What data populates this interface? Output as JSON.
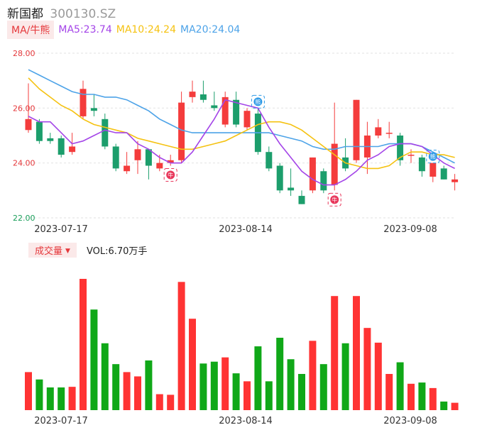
{
  "header": {
    "name": "新国都",
    "code": "300130.SZ"
  },
  "ma_legend": {
    "toggle_label": "MA/牛熊",
    "ma5": "MA5:23.74",
    "ma10": "MA10:24.24",
    "ma20": "MA20:24.04"
  },
  "volume_legend": {
    "toggle_label": "成交量",
    "value_label": "VOL:6.70万手"
  },
  "colors": {
    "up": "#f43c3c",
    "down": "#1c9e6c",
    "vol_up": "#ff3333",
    "vol_down": "#10a818",
    "ma5": "#a445e8",
    "ma10": "#f5c211",
    "ma20": "#4da3e8",
    "bull_badge": "#e8365a",
    "bear_badge": "#2e9ae6"
  },
  "chart_data": {
    "type": "candlestick",
    "y_ticks": [
      "28.00",
      "26.00",
      "24.00",
      "22.00"
    ],
    "ylim": [
      22,
      28
    ],
    "x_ticks": [
      "2023-07-17",
      "2023-08-14",
      "2023-09-08"
    ],
    "candles": [
      {
        "o": 25.2,
        "c": 25.6,
        "h": 26.9,
        "l": 25.1
      },
      {
        "o": 25.5,
        "c": 24.8,
        "h": 25.6,
        "l": 24.7
      },
      {
        "o": 24.9,
        "c": 24.8,
        "h": 25.1,
        "l": 24.7
      },
      {
        "o": 24.9,
        "c": 24.3,
        "h": 25.0,
        "l": 24.2
      },
      {
        "o": 24.4,
        "c": 24.6,
        "h": 25.1,
        "l": 24.3
      },
      {
        "o": 25.7,
        "c": 26.7,
        "h": 27.0,
        "l": 25.6
      },
      {
        "o": 26.0,
        "c": 25.9,
        "h": 26.5,
        "l": 25.7
      },
      {
        "o": 25.6,
        "c": 24.6,
        "h": 25.8,
        "l": 24.5
      },
      {
        "o": 24.6,
        "c": 23.8,
        "h": 24.7,
        "l": 23.7
      },
      {
        "o": 23.7,
        "c": 23.9,
        "h": 24.4,
        "l": 23.6
      },
      {
        "o": 24.1,
        "c": 24.5,
        "h": 24.8,
        "l": 23.6
      },
      {
        "o": 24.5,
        "c": 23.9,
        "h": 24.5,
        "l": 23.4
      },
      {
        "o": 23.8,
        "c": 24.0,
        "h": 24.3,
        "l": 23.7
      },
      {
        "o": 24.0,
        "c": 24.1,
        "h": 24.3,
        "l": 23.9
      },
      {
        "o": 24.1,
        "c": 26.2,
        "h": 26.6,
        "l": 24.0
      },
      {
        "o": 26.4,
        "c": 26.6,
        "h": 27.0,
        "l": 26.2
      },
      {
        "o": 26.5,
        "c": 26.3,
        "h": 27.0,
        "l": 26.2
      },
      {
        "o": 26.1,
        "c": 26.0,
        "h": 26.6,
        "l": 25.9
      },
      {
        "o": 25.4,
        "c": 26.4,
        "h": 26.6,
        "l": 25.3
      },
      {
        "o": 26.3,
        "c": 25.4,
        "h": 26.6,
        "l": 25.3
      },
      {
        "o": 25.3,
        "c": 25.9,
        "h": 26.0,
        "l": 25.2
      },
      {
        "o": 25.8,
        "c": 24.4,
        "h": 26.0,
        "l": 24.3
      },
      {
        "o": 24.4,
        "c": 23.8,
        "h": 24.6,
        "l": 23.7
      },
      {
        "o": 23.9,
        "c": 23.0,
        "h": 24.0,
        "l": 22.9
      },
      {
        "o": 23.1,
        "c": 23.0,
        "h": 23.8,
        "l": 22.8
      },
      {
        "o": 22.8,
        "c": 22.5,
        "h": 23.0,
        "l": 22.5
      },
      {
        "o": 23.0,
        "c": 24.2,
        "h": 24.2,
        "l": 22.9
      },
      {
        "o": 23.7,
        "c": 23.0,
        "h": 23.8,
        "l": 22.9
      },
      {
        "o": 23.2,
        "c": 24.7,
        "h": 26.2,
        "l": 23.0
      },
      {
        "o": 24.2,
        "c": 23.8,
        "h": 24.9,
        "l": 23.7
      },
      {
        "o": 24.1,
        "c": 26.3,
        "h": 26.3,
        "l": 24.0
      },
      {
        "o": 24.2,
        "c": 25.0,
        "h": 25.5,
        "l": 23.6
      },
      {
        "o": 25.0,
        "c": 25.3,
        "h": 25.6,
        "l": 24.9
      },
      {
        "o": 25.1,
        "c": 25.1,
        "h": 25.5,
        "l": 24.9
      },
      {
        "o": 25.0,
        "c": 24.1,
        "h": 25.1,
        "l": 23.9
      },
      {
        "o": 24.3,
        "c": 24.3,
        "h": 24.5,
        "l": 24.0
      },
      {
        "o": 24.2,
        "c": 23.7,
        "h": 24.3,
        "l": 23.5
      },
      {
        "o": 23.5,
        "c": 24.0,
        "h": 24.0,
        "l": 23.3
      },
      {
        "o": 23.8,
        "c": 23.4,
        "h": 23.9,
        "l": 23.4
      },
      {
        "o": 23.3,
        "c": 23.4,
        "h": 23.6,
        "l": 23.0
      }
    ],
    "ma5": [
      25.7,
      25.5,
      25.5,
      25.1,
      24.7,
      24.8,
      25.0,
      25.2,
      25.1,
      25.1,
      24.7,
      24.5,
      24.2,
      24.0,
      24.0,
      24.4,
      25.0,
      25.6,
      26.3,
      26.2,
      26.1,
      26.0,
      25.3,
      24.7,
      24.2,
      23.7,
      23.4,
      23.2,
      23.2,
      23.4,
      23.7,
      24.1,
      24.3,
      24.6,
      24.7,
      24.7,
      24.6,
      24.3,
      24.0,
      23.8
    ],
    "ma10": [
      27.1,
      26.7,
      26.4,
      26.1,
      25.9,
      25.6,
      25.4,
      25.3,
      25.2,
      25.1,
      24.9,
      24.8,
      24.7,
      24.6,
      24.5,
      24.5,
      24.6,
      24.7,
      24.8,
      25.0,
      25.2,
      25.4,
      25.5,
      25.5,
      25.4,
      25.2,
      24.9,
      24.6,
      24.3,
      24.0,
      23.9,
      23.8,
      23.8,
      23.9,
      24.2,
      24.4,
      24.4,
      24.3,
      24.3,
      24.2
    ],
    "ma20": [
      27.4,
      27.2,
      27.0,
      26.8,
      26.6,
      26.5,
      26.5,
      26.4,
      26.4,
      26.3,
      26.1,
      25.9,
      25.6,
      25.4,
      25.2,
      25.1,
      25.1,
      25.1,
      25.1,
      25.1,
      25.1,
      25.1,
      25.1,
      25.0,
      24.9,
      24.8,
      24.6,
      24.5,
      24.5,
      24.6,
      24.6,
      24.6,
      24.6,
      24.7,
      24.7,
      24.7,
      24.6,
      24.4,
      24.2,
      24.0
    ],
    "volume": [
      0.62,
      0.5,
      0.37,
      0.37,
      0.38,
      2.14,
      1.64,
      1.09,
      0.75,
      0.62,
      0.55,
      0.81,
      0.26,
      0.25,
      2.09,
      1.49,
      0.76,
      0.79,
      0.86,
      0.6,
      0.47,
      1.04,
      0.47,
      1.18,
      0.83,
      0.59,
      1.13,
      0.75,
      1.86,
      1.09,
      1.86,
      1.34,
      1.1,
      0.59,
      0.78,
      0.43,
      0.45,
      0.36,
      0.14,
      0.12
    ],
    "signals": [
      {
        "index": 13,
        "type": "bull",
        "label": "牛"
      },
      {
        "index": 21,
        "type": "bear",
        "label": "熊"
      },
      {
        "index": 28,
        "type": "bull",
        "label": "牛"
      },
      {
        "index": 37,
        "type": "bear",
        "label": "熊"
      }
    ]
  }
}
